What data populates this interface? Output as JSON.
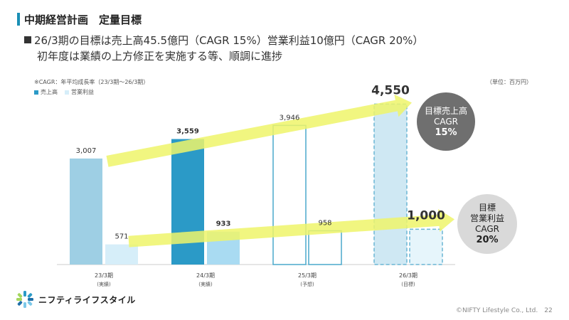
{
  "header": {
    "title": "中期経営計画　定量目標",
    "bullet": "26/3期の目標は売上高45.5億円（CAGR 15%）営業利益10億円（CAGR 20%）",
    "sub": "初年度は業績の上方修正を実施する等、順調に進捗",
    "accent_color": "#1a8fb5"
  },
  "chart_data": {
    "type": "bar",
    "note": "※CAGR：年平均成長率（23/3期～26/3期）",
    "unit": "（単位：百万円）",
    "categories": [
      "23/3期",
      "24/3期",
      "25/3期",
      "26/3期"
    ],
    "category_notes": [
      "(実績)",
      "(実績)",
      "(予想)",
      "(目標)"
    ],
    "ylim": [
      0,
      4800
    ],
    "series": [
      {
        "name": "売上高",
        "values": [
          3007,
          3559,
          3946,
          4550
        ],
        "labels": [
          "3,007",
          "3,559",
          "3,946",
          "4,550"
        ],
        "styles": [
          "solid-light",
          "solid-dark",
          "outline",
          "dashed"
        ],
        "bold": [
          false,
          true,
          false,
          true
        ],
        "colors": {
          "light": "#9ecfe4",
          "dark": "#2b9ac7",
          "outline": "#4aa9cc",
          "dashed_fill": "#cfe8f3",
          "dashed_stroke": "#6ab5d4"
        }
      },
      {
        "name": "営業利益",
        "values": [
          571,
          933,
          958,
          1000
        ],
        "labels": [
          "571",
          "933",
          "958",
          "1,000"
        ],
        "styles": [
          "solid-light",
          "solid-dark",
          "outline",
          "dashed"
        ],
        "bold": [
          false,
          true,
          false,
          true
        ],
        "colors": {
          "light": "#d6eef9",
          "dark": "#a9dbf2",
          "outline": "#4aa9cc",
          "dashed_fill": "#e6f5fb",
          "dashed_stroke": "#6ab5d4"
        }
      }
    ],
    "arrow_color": "#eef56a",
    "targets": [
      {
        "line1": "目標売上高",
        "line2": "CAGR",
        "line3": "15%"
      },
      {
        "line1": "目標",
        "line2": "営業利益",
        "line3": "CAGR",
        "line4": "20%"
      }
    ]
  },
  "logo": {
    "text": "ニフティライフスタイル"
  },
  "footer": {
    "copyright": "©NIFTY Lifestyle Co., Ltd.　22"
  }
}
